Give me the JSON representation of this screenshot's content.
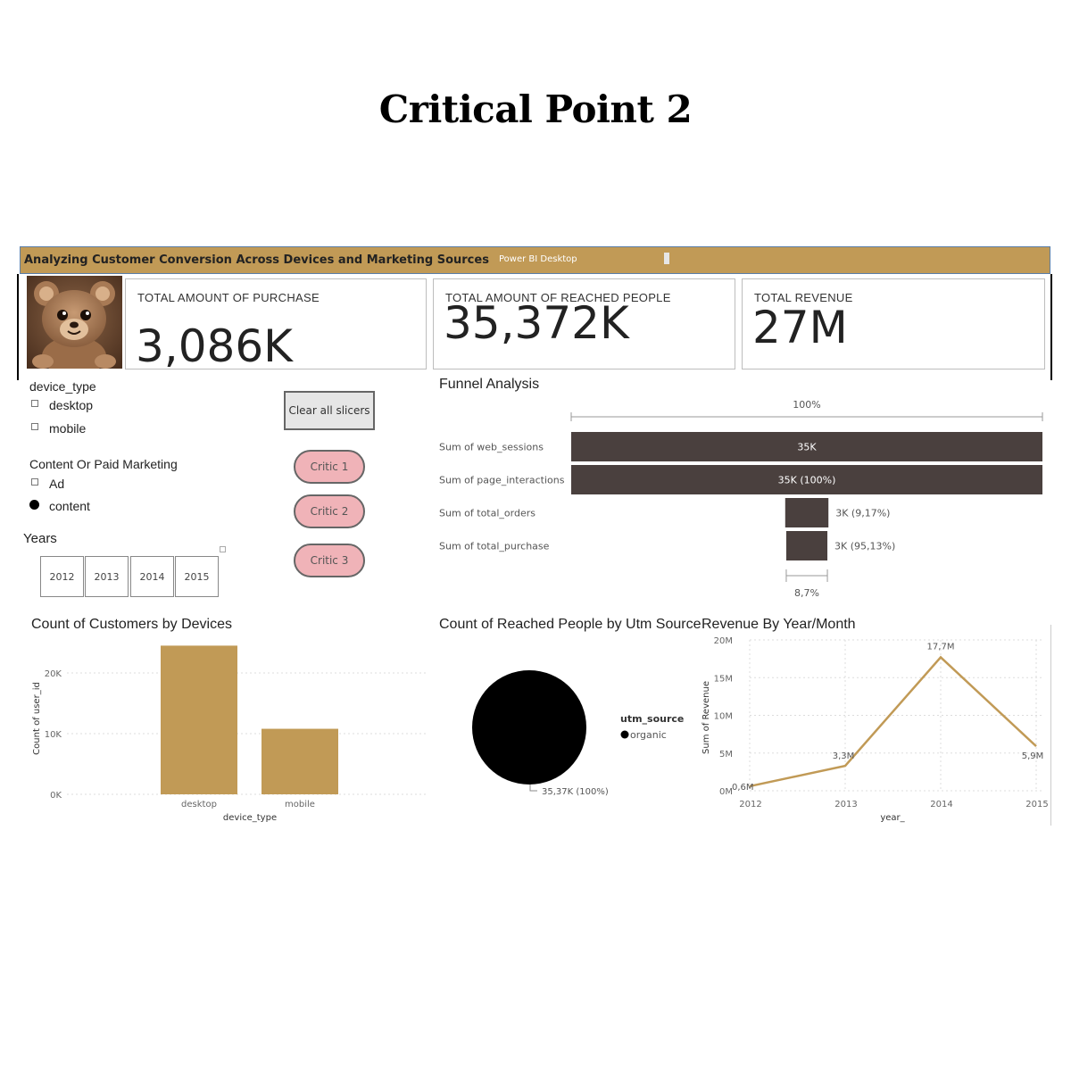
{
  "page": {
    "title": "Critical Point 2"
  },
  "report": {
    "title": "Analyzing Customer Conversion Across Devices and Marketing Sources",
    "app_name": "Power BI Desktop",
    "accent_color": "#c19a56",
    "funnel_color": "#4a403e"
  },
  "kpis": [
    {
      "label": "TOTAL AMOUNT OF PURCHASE",
      "value": "3,086K"
    },
    {
      "label": "TOTAL AMOUNT OF REACHED PEOPLE",
      "value": "35,372K"
    },
    {
      "label": "TOTAL REVENUE",
      "value": "27M"
    }
  ],
  "slicers": {
    "device": {
      "title": "device_type",
      "options": [
        "desktop",
        "mobile"
      ]
    },
    "marketing": {
      "title": "Content Or Paid Marketing",
      "options": [
        "Ad",
        "content"
      ],
      "selected": "content"
    },
    "years": {
      "title": "Years",
      "options": [
        "2012",
        "2013",
        "2014",
        "2015"
      ]
    },
    "clear_label": "Clear all slicers"
  },
  "buttons": {
    "critics": [
      "Critic 1",
      "Critic 2",
      "Critic 3"
    ]
  },
  "funnel": {
    "title": "Funnel Analysis",
    "top_label": "100%",
    "bottom_label": "8,7%",
    "stages": [
      {
        "label": "Sum of web_sessions",
        "value": 35000,
        "display": "35K"
      },
      {
        "label": "Sum of page_interactions",
        "value": 35000,
        "display": "35K (100%)"
      },
      {
        "label": "Sum of total_orders",
        "value": 3210,
        "display": "3K (9,17%)"
      },
      {
        "label": "Sum of total_purchase",
        "value": 3054,
        "display": "3K (95,13%)"
      }
    ]
  },
  "chart_data": [
    {
      "type": "bar",
      "title": "Count of Customers by Devices",
      "categories": [
        "desktop",
        "mobile"
      ],
      "values": [
        24500,
        10800
      ],
      "xlabel": "device_type",
      "ylabel": "Count of user_id",
      "ylim": [
        0,
        25000
      ],
      "yticks": [
        "0K",
        "10K",
        "20K"
      ],
      "color": "#c19a56",
      "grid": true
    },
    {
      "type": "pie",
      "title": "Count of Reached People by Utm Source",
      "legend_title": "utm_source",
      "slices": [
        {
          "name": "organic",
          "value": 35370,
          "label": "35,37K (100%)"
        }
      ],
      "color": "#000000",
      "legend": "right"
    },
    {
      "type": "line",
      "title": "Revenue By Year/Month",
      "x": [
        "2012",
        "2013",
        "2014",
        "2015"
      ],
      "values": [
        0.6,
        3.3,
        17.7,
        5.9
      ],
      "point_labels": [
        "0,6M",
        "3,3M",
        "17,7M",
        "5,9M"
      ],
      "xlabel": "year_",
      "ylabel": "Sum of Revenue",
      "ylim": [
        0,
        20
      ],
      "yticks": [
        "0M",
        "5M",
        "10M",
        "15M",
        "20M"
      ],
      "color": "#c19a56",
      "grid": true
    }
  ]
}
